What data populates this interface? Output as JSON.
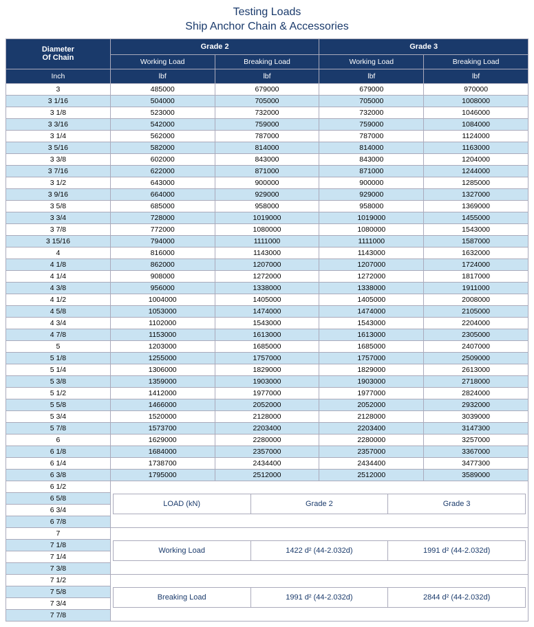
{
  "title_line1": "Testing Loads",
  "title_line2": "Ship Anchor Chain & Accessories",
  "header": {
    "diameter": "Diameter",
    "of_chain": "Of Chain",
    "grade2": "Grade 2",
    "grade3": "Grade 3",
    "working": "Working Load",
    "breaking": "Breaking Load",
    "inch": "Inch",
    "lbf": "lbf"
  },
  "rows": [
    {
      "d": "3",
      "g2w": "485000",
      "g2b": "679000",
      "g3w": "679000",
      "g3b": "970000"
    },
    {
      "d": "3  1/16",
      "g2w": "504000",
      "g2b": "705000",
      "g3w": "705000",
      "g3b": "1008000"
    },
    {
      "d": "3 1/8",
      "g2w": "523000",
      "g2b": "732000",
      "g3w": "732000",
      "g3b": "1046000"
    },
    {
      "d": "3  3/16",
      "g2w": "542000",
      "g2b": "759000",
      "g3w": "759000",
      "g3b": "1084000"
    },
    {
      "d": "3 1/4",
      "g2w": "562000",
      "g2b": "787000",
      "g3w": "787000",
      "g3b": "1124000"
    },
    {
      "d": "3  5/16",
      "g2w": "582000",
      "g2b": "814000",
      "g3w": "814000",
      "g3b": "1163000"
    },
    {
      "d": "3 3/8",
      "g2w": "602000",
      "g2b": "843000",
      "g3w": "843000",
      "g3b": "1204000"
    },
    {
      "d": "3  7/16",
      "g2w": "622000",
      "g2b": "871000",
      "g3w": "871000",
      "g3b": "1244000"
    },
    {
      "d": "3 1/2",
      "g2w": "643000",
      "g2b": "900000",
      "g3w": "900000",
      "g3b": "1285000"
    },
    {
      "d": "3  9/16",
      "g2w": "664000",
      "g2b": "929000",
      "g3w": "929000",
      "g3b": "1327000"
    },
    {
      "d": "3 5/8",
      "g2w": "685000",
      "g2b": "958000",
      "g3w": "958000",
      "g3b": "1369000"
    },
    {
      "d": "3 3/4",
      "g2w": "728000",
      "g2b": "1019000",
      "g3w": "1019000",
      "g3b": "1455000"
    },
    {
      "d": "3 7/8",
      "g2w": "772000",
      "g2b": "1080000",
      "g3w": "1080000",
      "g3b": "1543000"
    },
    {
      "d": "3 15/16",
      "g2w": "794000",
      "g2b": "1111000",
      "g3w": "1111000",
      "g3b": "1587000"
    },
    {
      "d": "4",
      "g2w": "816000",
      "g2b": "1143000",
      "g3w": "1143000",
      "g3b": "1632000"
    },
    {
      "d": "4 1/8",
      "g2w": "862000",
      "g2b": "1207000",
      "g3w": "1207000",
      "g3b": "1724000"
    },
    {
      "d": "4 1/4",
      "g2w": "908000",
      "g2b": "1272000",
      "g3w": "1272000",
      "g3b": "1817000"
    },
    {
      "d": "4 3/8",
      "g2w": "956000",
      "g2b": "1338000",
      "g3w": "1338000",
      "g3b": "1911000"
    },
    {
      "d": "4 1/2",
      "g2w": "1004000",
      "g2b": "1405000",
      "g3w": "1405000",
      "g3b": "2008000"
    },
    {
      "d": "4 5/8",
      "g2w": "1053000",
      "g2b": "1474000",
      "g3w": "1474000",
      "g3b": "2105000"
    },
    {
      "d": "4 3/4",
      "g2w": "1102000",
      "g2b": "1543000",
      "g3w": "1543000",
      "g3b": "2204000"
    },
    {
      "d": "4 7/8",
      "g2w": "1153000",
      "g2b": "1613000",
      "g3w": "1613000",
      "g3b": "2305000"
    },
    {
      "d": "5",
      "g2w": "1203000",
      "g2b": "1685000",
      "g3w": "1685000",
      "g3b": "2407000"
    },
    {
      "d": "5 1/8",
      "g2w": "1255000",
      "g2b": "1757000",
      "g3w": "1757000",
      "g3b": "2509000"
    },
    {
      "d": "5 1/4",
      "g2w": "1306000",
      "g2b": "1829000",
      "g3w": "1829000",
      "g3b": "2613000"
    },
    {
      "d": "5 3/8",
      "g2w": "1359000",
      "g2b": "1903000",
      "g3w": "1903000",
      "g3b": "2718000"
    },
    {
      "d": "5 1/2",
      "g2w": "1412000",
      "g2b": "1977000",
      "g3w": "1977000",
      "g3b": "2824000"
    },
    {
      "d": "5 5/8",
      "g2w": "1466000",
      "g2b": "2052000",
      "g3w": "2052000",
      "g3b": "2932000"
    },
    {
      "d": "5 3/4",
      "g2w": "1520000",
      "g2b": "2128000",
      "g3w": "2128000",
      "g3b": "3039000"
    },
    {
      "d": "5 7/8",
      "g2w": "1573700",
      "g2b": "2203400",
      "g3w": "2203400",
      "g3b": "3147300"
    },
    {
      "d": "6",
      "g2w": "1629000",
      "g2b": "2280000",
      "g3w": "2280000",
      "g3b": "3257000"
    },
    {
      "d": "6 1/8",
      "g2w": "1684000",
      "g2b": "2357000",
      "g3w": "2357000",
      "g3b": "3367000"
    },
    {
      "d": "6 1/4",
      "g2w": "1738700",
      "g2b": "2434400",
      "g3w": "2434400",
      "g3b": "3477300"
    },
    {
      "d": "6 3/8",
      "g2w": "1795000",
      "g2b": "2512000",
      "g3w": "2512000",
      "g3b": "3589000"
    }
  ],
  "tail_diameters": [
    "6 1/2",
    "6 5/8",
    "6 3/4",
    "6 7/8",
    "7",
    "7 1/8",
    "7 1/4",
    "7 3/8",
    "7 1/2",
    "7 5/8",
    "7 3/4",
    "7 7/8"
  ],
  "formulas": {
    "load_kn": "LOAD (kN)",
    "grade2": "Grade 2",
    "grade3": "Grade 3",
    "working": "Working Load",
    "breaking": "Breaking Load",
    "w_g2": "1422 d² (44-2.032d)",
    "w_g3": "1991 d² (44-2.032d)",
    "b_g2": "1991 d² (44-2.032d)",
    "b_g3": "2844 d² (44-2.032d)"
  },
  "colors": {
    "header_bg": "#1a3a6b",
    "alt_row": "#c9e3f2",
    "border": "#aab"
  }
}
